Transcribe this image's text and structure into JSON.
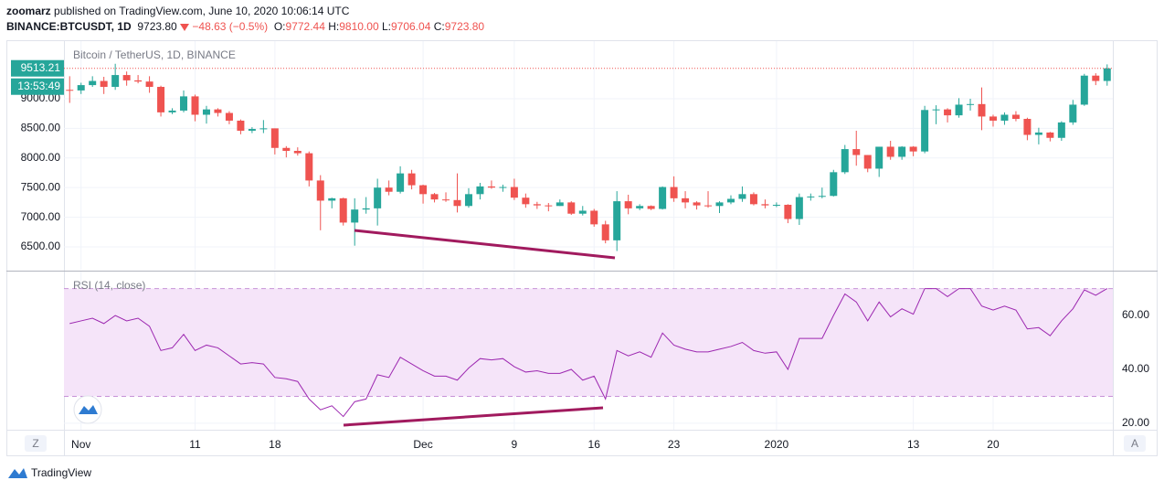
{
  "header": {
    "author": "zoomarz",
    "published": "published on TradingView.com, June 10, 2020 10:06:14 UTC",
    "symbol": "BINANCE:BTCUSDT, 1D",
    "last": "9723.80",
    "change": "−48.63 (−0.5%)",
    "ohlc": [
      {
        "label": "O:",
        "value": "9772.44"
      },
      {
        "label": "H:",
        "value": "9810.00"
      },
      {
        "label": "L:",
        "value": "9706.04"
      },
      {
        "label": "C:",
        "value": "9723.80"
      }
    ]
  },
  "buttons": {
    "left": "Z",
    "right": "A"
  },
  "footer": {
    "brand": "TradingView"
  },
  "chart_data": [
    {
      "type": "candlestick",
      "title": "Bitcoin / TetherUS, 1D, BINANCE",
      "categories": [
        null,
        "Nov",
        null,
        null,
        null,
        null,
        null,
        null,
        null,
        null,
        null,
        "11",
        null,
        null,
        null,
        null,
        null,
        null,
        "18",
        null,
        null,
        null,
        null,
        null,
        null,
        null,
        null,
        null,
        null,
        null,
        null,
        "Dec",
        null,
        null,
        null,
        null,
        null,
        null,
        null,
        "9",
        null,
        null,
        null,
        null,
        null,
        null,
        "16",
        null,
        null,
        null,
        null,
        null,
        null,
        "23",
        null,
        null,
        null,
        null,
        null,
        null,
        null,
        null,
        "2020",
        null,
        null,
        null,
        null,
        null,
        null,
        null,
        null,
        null,
        null,
        null,
        "13",
        null,
        null,
        null,
        null,
        null,
        null,
        "20",
        null,
        null,
        null,
        null,
        null,
        null,
        null,
        null,
        null,
        null
      ],
      "open": [
        9150,
        9140,
        9230,
        9300,
        9200,
        9400,
        9310,
        9290,
        9200,
        8770,
        8800,
        9040,
        8730,
        8820,
        8760,
        8630,
        8460,
        8490,
        8500,
        8170,
        8120,
        8080,
        7620,
        7280,
        7320,
        6910,
        7130,
        7150,
        7500,
        7430,
        7740,
        7540,
        7390,
        7300,
        7290,
        7190,
        7390,
        7520,
        7500,
        7510,
        7330,
        7220,
        7200,
        7190,
        7250,
        7060,
        7110,
        6880,
        6610,
        7270,
        7150,
        7190,
        7140,
        7510,
        7320,
        7250,
        7200,
        7190,
        7250,
        7310,
        7390,
        7220,
        7200,
        7210,
        6970,
        7340,
        7350,
        7360,
        7760,
        8150,
        8050,
        7820,
        8190,
        8020,
        8190,
        8110,
        8810,
        8820,
        8720,
        8900,
        8910,
        8700,
        8630,
        8730,
        8660,
        8390,
        8430,
        8340,
        8600,
        8900,
        9390,
        9300
      ],
      "high": [
        9380,
        9270,
        9380,
        9370,
        9590,
        9460,
        9400,
        9380,
        9220,
        8840,
        9140,
        9070,
        8880,
        8840,
        8790,
        8650,
        8520,
        8640,
        8500,
        8200,
        8180,
        8110,
        7710,
        7330,
        7330,
        7320,
        7340,
        7650,
        7620,
        7860,
        7800,
        7550,
        7410,
        7420,
        7740,
        7490,
        7580,
        7620,
        7550,
        7650,
        7400,
        7260,
        7240,
        7300,
        7270,
        7190,
        7140,
        6940,
        7440,
        7380,
        7220,
        7200,
        7520,
        7690,
        7440,
        7270,
        7440,
        7270,
        7370,
        7520,
        7420,
        7300,
        7250,
        7220,
        7400,
        7400,
        7500,
        7800,
        8220,
        8460,
        8050,
        8190,
        8290,
        8200,
        8200,
        8880,
        8890,
        8840,
        9010,
        9000,
        9190,
        8730,
        8770,
        8790,
        8680,
        8510,
        8440,
        8620,
        8980,
        9420,
        9430,
        9580
      ],
      "low": [
        8930,
        9080,
        9200,
        9080,
        9150,
        9220,
        9260,
        9100,
        8700,
        8740,
        8770,
        8620,
        8580,
        8700,
        8570,
        8400,
        8420,
        8420,
        8060,
        8010,
        8040,
        7520,
        6780,
        7150,
        6860,
        6520,
        7060,
        6860,
        7370,
        7400,
        7470,
        7230,
        7250,
        7260,
        7080,
        7160,
        7300,
        7480,
        7430,
        7290,
        7160,
        7140,
        7100,
        7190,
        7040,
        7030,
        6840,
        6560,
        6430,
        7050,
        7120,
        7120,
        7130,
        7260,
        7150,
        7130,
        7160,
        7070,
        7220,
        7260,
        7200,
        7150,
        7170,
        6900,
        6870,
        7280,
        7320,
        7350,
        7730,
        7870,
        7760,
        7680,
        7970,
        7970,
        8030,
        8080,
        8570,
        8600,
        8680,
        8800,
        8470,
        8530,
        8560,
        8620,
        8300,
        8230,
        8280,
        8290,
        8560,
        8880,
        9230,
        9220
      ],
      "close": [
        9140,
        9230,
        9300,
        9200,
        9400,
        9310,
        9290,
        9200,
        8770,
        8800,
        9040,
        8730,
        8820,
        8760,
        8630,
        8460,
        8490,
        8500,
        8170,
        8120,
        8080,
        7620,
        7280,
        7320,
        6910,
        7130,
        7150,
        7500,
        7430,
        7740,
        7540,
        7390,
        7300,
        7290,
        7190,
        7390,
        7520,
        7500,
        7510,
        7330,
        7220,
        7200,
        7190,
        7250,
        7060,
        7110,
        6880,
        6610,
        7270,
        7150,
        7190,
        7140,
        7510,
        7320,
        7250,
        7200,
        7190,
        7250,
        7310,
        7390,
        7220,
        7200,
        7210,
        6970,
        7340,
        7350,
        7360,
        7760,
        8150,
        8050,
        7820,
        8190,
        8020,
        8190,
        8110,
        8810,
        8820,
        8720,
        8900,
        8910,
        8700,
        8630,
        8730,
        8660,
        8390,
        8430,
        8340,
        8600,
        8900,
        9390,
        9300,
        9513.21
      ],
      "up_color": "#26a69a",
      "down_color": "#ef5350",
      "ylim": [
        6114,
        9972
      ],
      "yticks": [
        {
          "value": 6500,
          "label": "6500.00"
        },
        {
          "value": 7000,
          "label": "7000.00"
        },
        {
          "value": 7500,
          "label": "7500.00"
        },
        {
          "value": 8000,
          "label": "8000.00"
        },
        {
          "value": 8500,
          "label": "8500.00"
        },
        {
          "value": 9000,
          "label": "9000.00"
        }
      ],
      "grid": true,
      "last_price": 9513.21,
      "countdown": "13:53:49"
    },
    {
      "type": "line",
      "title": "RSI (14, close)",
      "values": [
        57,
        58,
        59,
        57,
        60,
        58,
        59,
        56,
        47,
        48,
        53,
        47,
        49,
        48,
        45,
        42,
        42.5,
        42,
        37,
        36.5,
        35.5,
        29,
        25,
        26.5,
        22.5,
        28,
        29,
        38,
        37,
        44.5,
        42,
        39.5,
        37.5,
        37.5,
        36,
        40.5,
        44,
        43.5,
        44,
        41,
        39,
        39.5,
        38.5,
        38.5,
        40,
        36,
        37.5,
        29,
        47,
        45,
        46.5,
        44.5,
        53.5,
        49,
        47.5,
        46.5,
        46.5,
        47.5,
        48.5,
        50,
        47,
        46,
        46.5,
        40,
        51.5,
        51.5,
        51.5,
        60,
        68,
        65,
        58,
        65,
        59.5,
        62.5,
        60.5,
        70,
        70,
        67,
        70,
        70,
        63.5,
        62,
        63.5,
        62,
        55,
        55.5,
        52.5,
        58,
        62.5,
        69.5,
        67.5,
        70
      ],
      "color": "#9c27b0",
      "band_color": "#f5e4f9",
      "bands": [
        30,
        70
      ],
      "ylim": [
        17.6,
        76.3
      ],
      "yticks": [
        {
          "value": 20,
          "label": "20.00"
        },
        {
          "value": 40,
          "label": "40.00"
        },
        {
          "value": 60,
          "label": "60.00"
        }
      ],
      "grid": true
    }
  ]
}
